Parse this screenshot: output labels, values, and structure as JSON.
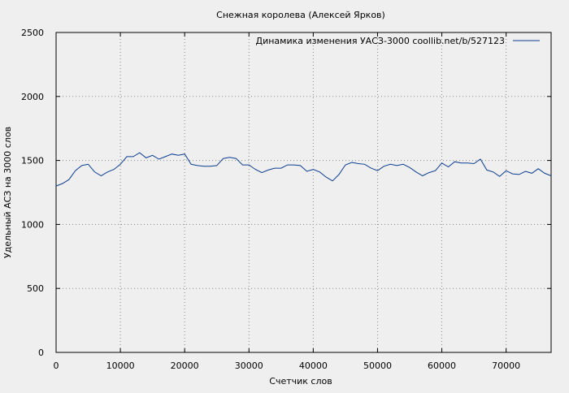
{
  "chart_data": {
    "type": "line",
    "title": "Снежная королева (Алексей Ярков)",
    "xlabel": "Счетчик слов",
    "ylabel": "Удельный АСЗ на 3000 слов",
    "xlim": [
      0,
      77000
    ],
    "ylim": [
      0,
      2500
    ],
    "x_ticks": [
      0,
      10000,
      20000,
      30000,
      40000,
      50000,
      60000,
      70000
    ],
    "y_ticks": [
      0,
      500,
      1000,
      1500,
      2000,
      2500
    ],
    "grid": true,
    "legend_position": "top-right",
    "colors": {
      "series": "#0b3d91",
      "grid": "#888888",
      "background": "#efefef"
    },
    "series": [
      {
        "name": "Динамика изменения УАСЗ-3000  coollib.net/b/527123",
        "x": [
          0,
          1000,
          2000,
          3000,
          4000,
          5000,
          6000,
          7000,
          8000,
          9000,
          10000,
          11000,
          12000,
          13000,
          14000,
          15000,
          16000,
          17000,
          18000,
          19000,
          20000,
          21000,
          22000,
          23000,
          24000,
          25000,
          26000,
          27000,
          28000,
          29000,
          30000,
          31000,
          32000,
          33000,
          34000,
          35000,
          36000,
          37000,
          38000,
          39000,
          40000,
          41000,
          42000,
          43000,
          44000,
          45000,
          46000,
          47000,
          48000,
          49000,
          50000,
          51000,
          52000,
          53000,
          54000,
          55000,
          56000,
          57000,
          58000,
          59000,
          60000,
          61000,
          62000,
          63000,
          64000,
          65000,
          66000,
          67000,
          68000,
          69000,
          70000,
          71000,
          72000,
          73000,
          74000,
          75000,
          76000,
          77000
        ],
        "y": [
          1300,
          1320,
          1350,
          1420,
          1460,
          1470,
          1410,
          1380,
          1410,
          1430,
          1470,
          1530,
          1530,
          1560,
          1520,
          1540,
          1510,
          1530,
          1550,
          1540,
          1550,
          1470,
          1460,
          1455,
          1455,
          1460,
          1515,
          1525,
          1515,
          1465,
          1465,
          1430,
          1405,
          1425,
          1440,
          1440,
          1465,
          1465,
          1460,
          1415,
          1430,
          1410,
          1370,
          1340,
          1390,
          1465,
          1485,
          1475,
          1470,
          1440,
          1420,
          1455,
          1470,
          1460,
          1470,
          1445,
          1410,
          1380,
          1405,
          1420,
          1480,
          1450,
          1490,
          1480,
          1480,
          1475,
          1510,
          1425,
          1410,
          1375,
          1420,
          1395,
          1390,
          1415,
          1400,
          1435,
          1400,
          1380
        ]
      }
    ]
  }
}
